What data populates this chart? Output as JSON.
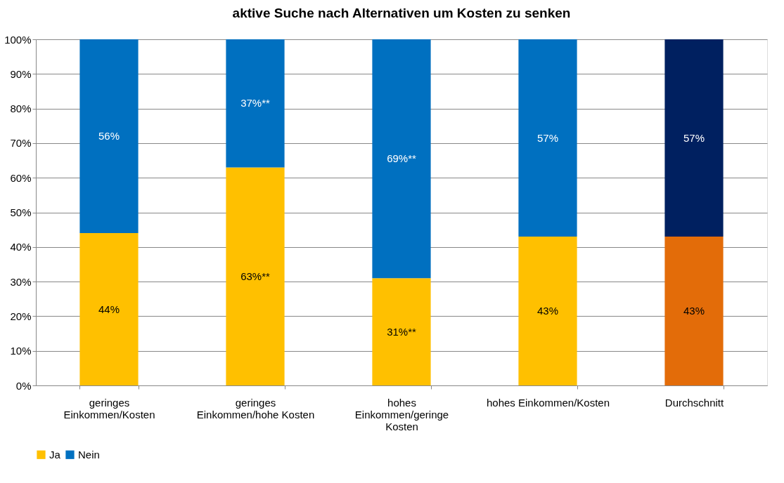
{
  "chart_data": {
    "type": "bar",
    "title": "aktive Suche nach Alternativen um Kosten zu senken",
    "categories": [
      "geringes Einkommen/Kosten",
      "geringes Einkommen/hohe Kosten",
      "hohes Einkommen/geringe Kosten",
      "hohes Einkommen/Kosten",
      "Durchschnitt"
    ],
    "stacked": true,
    "series": [
      {
        "name": "Ja",
        "color": "#ffc000",
        "colors": [
          "#ffc000",
          "#ffc000",
          "#ffc000",
          "#ffc000",
          "#e36c09"
        ],
        "values": [
          44,
          63,
          31,
          43,
          43
        ],
        "value_labels": [
          "44%",
          "63%**",
          "31%**",
          "43%",
          "43%"
        ]
      },
      {
        "name": "Nein",
        "color": "#0070c0",
        "colors": [
          "#0070c0",
          "#0070c0",
          "#0070c0",
          "#0070c0",
          "#002060"
        ],
        "values": [
          56,
          37,
          69,
          57,
          57
        ],
        "value_labels": [
          "56%",
          "37%**",
          "69%**",
          "57%",
          "57%"
        ]
      }
    ],
    "ylim": [
      0,
      100
    ],
    "yticks": [
      {
        "value": 0,
        "label": "0%"
      },
      {
        "value": 10,
        "label": "10%"
      },
      {
        "value": 20,
        "label": "20%"
      },
      {
        "value": 30,
        "label": "30%"
      },
      {
        "value": 40,
        "label": "40%"
      },
      {
        "value": 50,
        "label": "50%"
      },
      {
        "value": 60,
        "label": "60%"
      },
      {
        "value": 70,
        "label": "70%"
      },
      {
        "value": 80,
        "label": "80%"
      },
      {
        "value": 90,
        "label": "90%"
      },
      {
        "value": 100,
        "label": "100%"
      }
    ],
    "grid": "y",
    "legend": "bottom"
  }
}
